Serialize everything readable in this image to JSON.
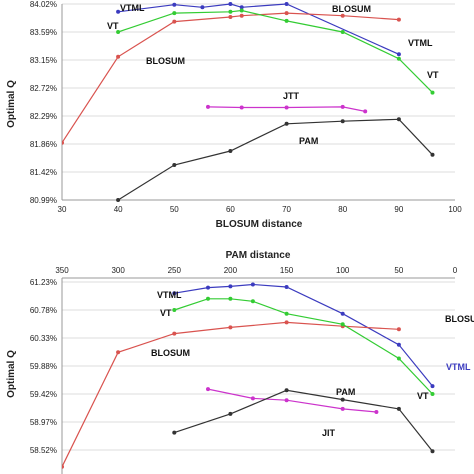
{
  "chart_data": [
    {
      "type": "line",
      "title": "",
      "xlabel": "BLOSUM distance",
      "ylabel": "Optimal Q",
      "x_ticks": [
        "30",
        "40",
        "50",
        "60",
        "70",
        "80",
        "90",
        "100"
      ],
      "y_ticks": [
        "80.99%",
        "81.42%",
        "81.86%",
        "82.29%",
        "82.72%",
        "83.15%",
        "83.59%",
        "84.02%"
      ],
      "xlim": [
        30,
        100
      ],
      "ylim": [
        80.99,
        84.02
      ],
      "grid": "horizontal",
      "series": [
        {
          "name": "VTML",
          "color": "#3b3bbf",
          "x": [
            40,
            50,
            55,
            60,
            62,
            70,
            90
          ],
          "y": [
            83.9,
            84.01,
            83.97,
            84.02,
            83.97,
            84.02,
            83.24
          ]
        },
        {
          "name": "BLOSUM",
          "color": "#d9534f",
          "x": [
            30,
            40,
            50,
            60,
            62,
            70,
            80,
            90
          ],
          "y": [
            81.88,
            83.2,
            83.75,
            83.82,
            83.84,
            83.88,
            83.84,
            83.78
          ]
        },
        {
          "name": "VT",
          "color": "#33cc33",
          "x": [
            40,
            50,
            60,
            62,
            70,
            80,
            90,
            96
          ],
          "y": [
            83.59,
            83.88,
            83.9,
            83.92,
            83.76,
            83.59,
            83.17,
            82.65
          ]
        },
        {
          "name": "JTT",
          "color": "#cc33cc",
          "x": [
            56,
            62,
            70,
            80,
            84
          ],
          "y": [
            82.43,
            82.42,
            82.42,
            82.43,
            82.36
          ]
        },
        {
          "name": "PAM",
          "color": "#333333",
          "x": [
            40,
            50,
            60,
            70,
            80,
            90,
            96
          ],
          "y": [
            80.99,
            81.53,
            81.75,
            82.17,
            82.21,
            82.24,
            81.69
          ]
        }
      ],
      "labels": [
        {
          "text": "VTML",
          "series": "VTML"
        },
        {
          "text": "VT",
          "series": "VT"
        },
        {
          "text": "BLOSUM",
          "series": "BLOSUM"
        },
        {
          "text": "BLOSUM",
          "series": "BLOSUM"
        },
        {
          "text": "VTML",
          "series": "VTML"
        },
        {
          "text": "VT",
          "series": "VT"
        },
        {
          "text": "JTT",
          "series": "JTT"
        },
        {
          "text": "PAM",
          "series": "PAM"
        }
      ]
    },
    {
      "type": "line",
      "title": "",
      "xlabel": "PAM distance",
      "ylabel": "Optimal Q",
      "x_ticks": [
        "350",
        "300",
        "250",
        "200",
        "150",
        "100",
        "50",
        "0"
      ],
      "y_ticks": [
        "58.52%",
        "58.97%",
        "59.42%",
        "59.88%",
        "60.33%",
        "60.78%",
        "61.23%"
      ],
      "xlim": [
        350,
        0
      ],
      "ylim": [
        58.4,
        61.5
      ],
      "grid": "horizontal",
      "series": [
        {
          "name": "VTML",
          "color": "#3b3bbf",
          "x": [
            250,
            220,
            200,
            180,
            150,
            100,
            50,
            20
          ],
          "y": [
            61.05,
            61.14,
            61.16,
            61.19,
            61.15,
            60.72,
            60.22,
            59.55
          ]
        },
        {
          "name": "BLOSUM",
          "color": "#d9534f",
          "x": [
            350,
            300,
            250,
            200,
            150,
            100,
            50
          ],
          "y": [
            58.25,
            60.1,
            60.4,
            60.5,
            60.58,
            60.52,
            60.47
          ]
        },
        {
          "name": "VT",
          "color": "#33cc33",
          "x": [
            250,
            220,
            200,
            180,
            150,
            100,
            50,
            20
          ],
          "y": [
            60.78,
            60.96,
            60.96,
            60.92,
            60.72,
            60.55,
            60.0,
            59.42
          ]
        },
        {
          "name": "JTT",
          "color": "#cc33cc",
          "x": [
            220,
            180,
            150,
            100,
            70
          ],
          "y": [
            59.5,
            59.35,
            59.32,
            59.18,
            59.13
          ]
        },
        {
          "name": "PAM",
          "color": "#333333",
          "x": [
            250,
            200,
            150,
            100,
            50,
            20
          ],
          "y": [
            58.8,
            59.1,
            59.48,
            59.33,
            59.18,
            58.5
          ]
        }
      ],
      "labels": [
        {
          "text": "VTML",
          "series": "VTML"
        },
        {
          "text": "VT",
          "series": "VT"
        },
        {
          "text": "BLOSUM",
          "series": "BLOSUM"
        },
        {
          "text": "BLOSUM",
          "series": "BLOSUM"
        },
        {
          "text": "VTML",
          "series": "VTML"
        },
        {
          "text": "VT",
          "series": "VT"
        },
        {
          "text": "PAM",
          "series": "PAM"
        },
        {
          "text": "JIT",
          "series": "JTT"
        }
      ]
    }
  ]
}
